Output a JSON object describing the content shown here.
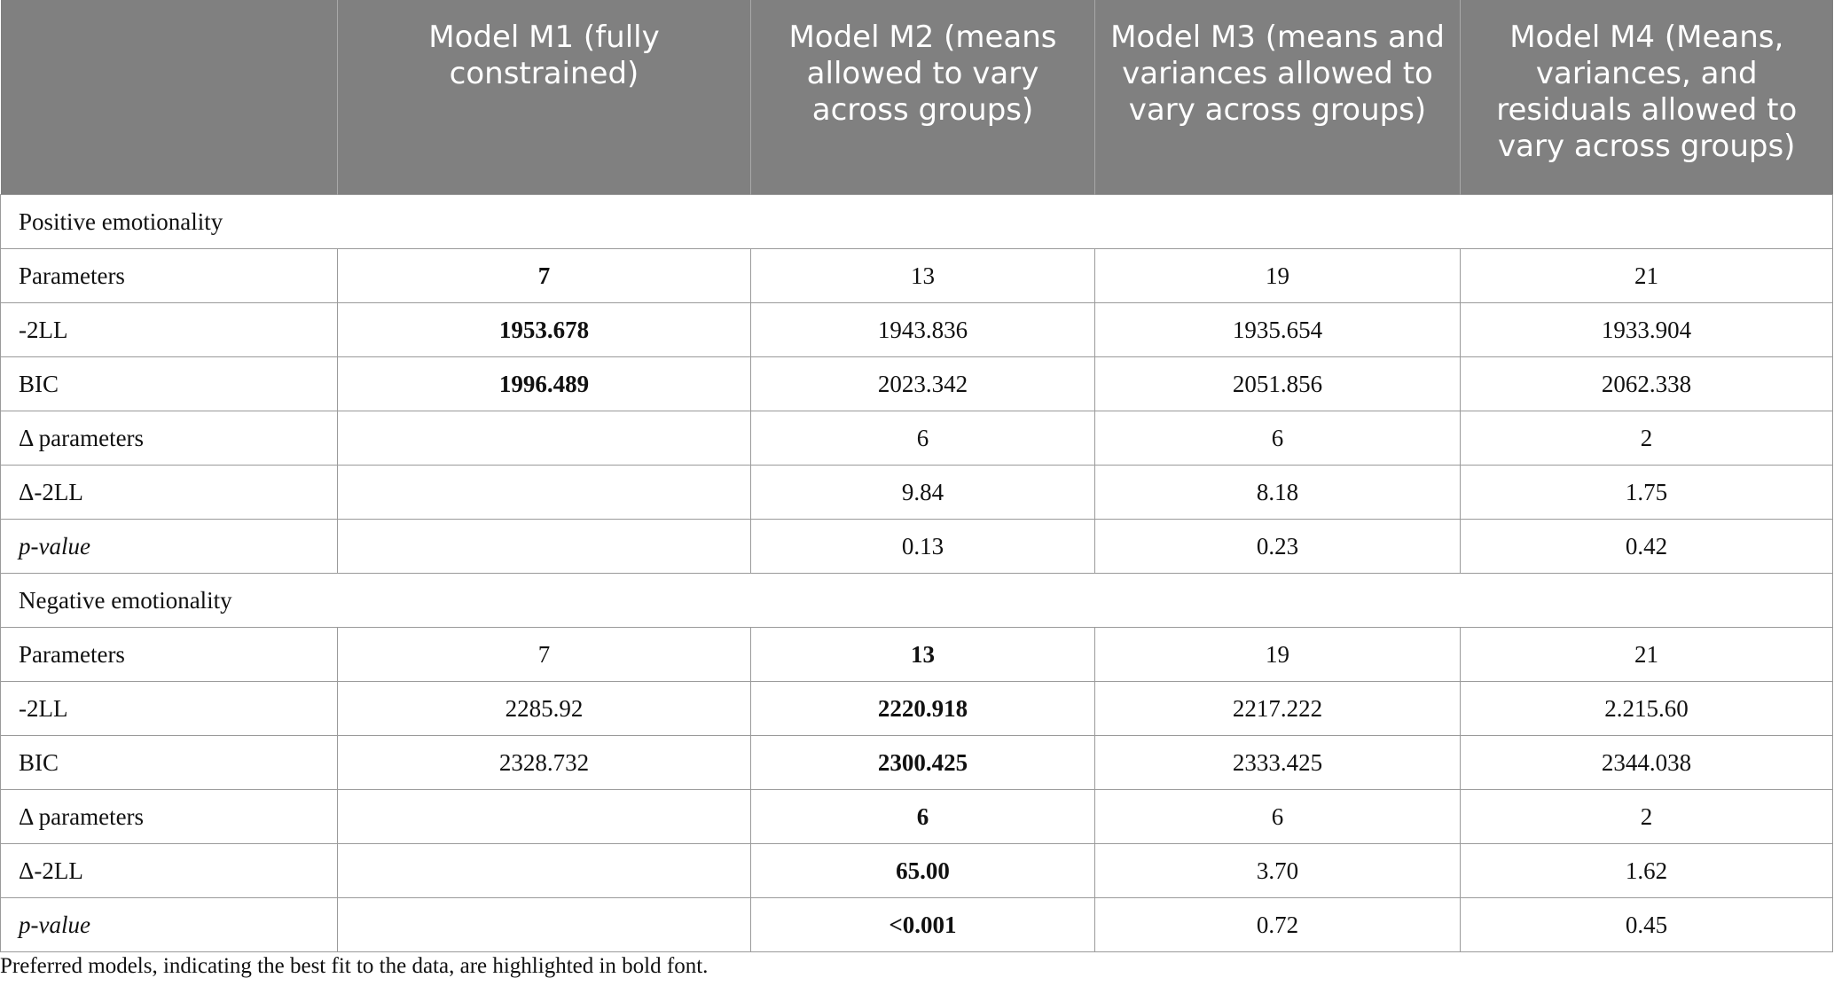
{
  "header": [
    "",
    "Model M1 (fully constrained)",
    "Model M2 (means allowed to vary across groups)",
    "Model M3 (means and variances allowed to vary across groups)",
    "Model M4 (Means, variances, and residuals allowed to vary across groups)"
  ],
  "sections": [
    {
      "title": "Positive emotionality",
      "rows": [
        {
          "label": "Parameters",
          "italic": false,
          "cells": [
            {
              "v": "7",
              "bold": true
            },
            {
              "v": "13",
              "bold": false
            },
            {
              "v": "19",
              "bold": false
            },
            {
              "v": "21",
              "bold": false
            }
          ]
        },
        {
          "label": "-2LL",
          "italic": false,
          "cells": [
            {
              "v": "1953.678",
              "bold": true
            },
            {
              "v": "1943.836",
              "bold": false
            },
            {
              "v": "1935.654",
              "bold": false
            },
            {
              "v": "1933.904",
              "bold": false
            }
          ]
        },
        {
          "label": "BIC",
          "italic": false,
          "cells": [
            {
              "v": "1996.489",
              "bold": true
            },
            {
              "v": "2023.342",
              "bold": false
            },
            {
              "v": "2051.856",
              "bold": false
            },
            {
              "v": "2062.338",
              "bold": false
            }
          ]
        },
        {
          "label": "Δ parameters",
          "italic": false,
          "cells": [
            {
              "v": "",
              "bold": false
            },
            {
              "v": "6",
              "bold": false
            },
            {
              "v": "6",
              "bold": false
            },
            {
              "v": "2",
              "bold": false
            }
          ]
        },
        {
          "label": "Δ-2LL",
          "italic": false,
          "cells": [
            {
              "v": "",
              "bold": false
            },
            {
              "v": "9.84",
              "bold": false
            },
            {
              "v": "8.18",
              "bold": false
            },
            {
              "v": "1.75",
              "bold": false
            }
          ]
        },
        {
          "label": "p-value",
          "italic": true,
          "cells": [
            {
              "v": "",
              "bold": false
            },
            {
              "v": "0.13",
              "bold": false
            },
            {
              "v": "0.23",
              "bold": false
            },
            {
              "v": "0.42",
              "bold": false
            }
          ]
        }
      ]
    },
    {
      "title": "Negative emotionality",
      "rows": [
        {
          "label": "Parameters",
          "italic": false,
          "cells": [
            {
              "v": "7",
              "bold": false
            },
            {
              "v": "13",
              "bold": true
            },
            {
              "v": "19",
              "bold": false
            },
            {
              "v": "21",
              "bold": false
            }
          ]
        },
        {
          "label": "-2LL",
          "italic": false,
          "cells": [
            {
              "v": "2285.92",
              "bold": false
            },
            {
              "v": "2220.918",
              "bold": true
            },
            {
              "v": "2217.222",
              "bold": false
            },
            {
              "v": "2.215.60",
              "bold": false
            }
          ]
        },
        {
          "label": "BIC",
          "italic": false,
          "cells": [
            {
              "v": "2328.732",
              "bold": false
            },
            {
              "v": "2300.425",
              "bold": true
            },
            {
              "v": "2333.425",
              "bold": false
            },
            {
              "v": "2344.038",
              "bold": false
            }
          ]
        },
        {
          "label": "Δ parameters",
          "italic": false,
          "cells": [
            {
              "v": "",
              "bold": false
            },
            {
              "v": "6",
              "bold": true
            },
            {
              "v": "6",
              "bold": false
            },
            {
              "v": "2",
              "bold": false
            }
          ]
        },
        {
          "label": "Δ-2LL",
          "italic": false,
          "cells": [
            {
              "v": "",
              "bold": false
            },
            {
              "v": "65.00",
              "bold": true
            },
            {
              "v": "3.70",
              "bold": false
            },
            {
              "v": "1.62",
              "bold": false
            }
          ]
        },
        {
          "label": "p-value",
          "italic": true,
          "cells": [
            {
              "v": "",
              "bold": false
            },
            {
              "v": "<0.001",
              "bold": true
            },
            {
              "v": "0.72",
              "bold": false
            },
            {
              "v": "0.45",
              "bold": false
            }
          ]
        }
      ]
    }
  ],
  "footnote": "Preferred models, indicating the best fit to the data, are highlighted in bold font."
}
